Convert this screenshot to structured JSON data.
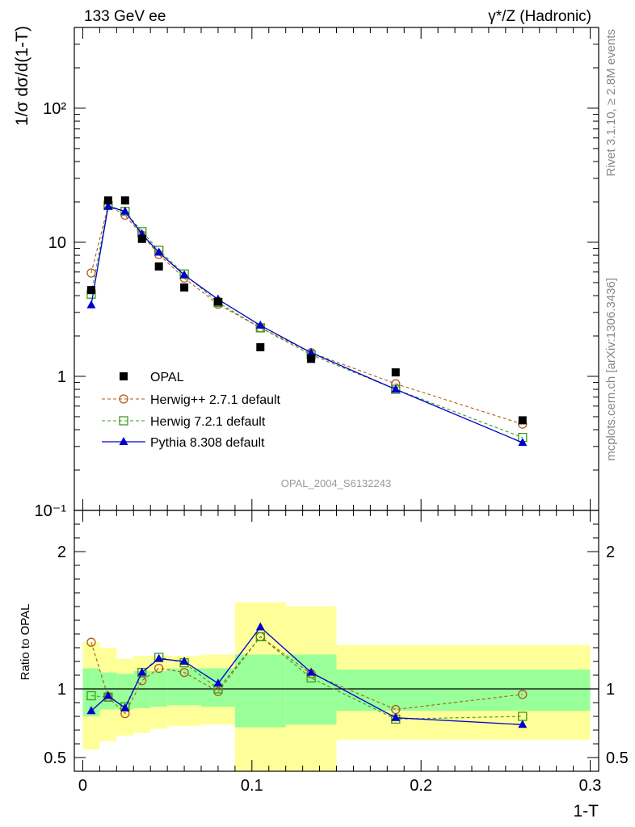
{
  "header": {
    "left": "133 GeV ee",
    "right": "γ*/Z (Hadronic)"
  },
  "side_text": {
    "rivet": "Rivet 3.1.10, ≥ 2.8M events",
    "mcplots": "mcplots.cern.ch [arXiv:1306.3436]"
  },
  "watermark": "OPAL_2004_S6132243",
  "colors": {
    "data": "#000000",
    "herwigpp": "#b05a1b",
    "herwig7": "#3c9a1c",
    "pythia": "#0000cc",
    "band_outer": "#ffff99",
    "band_inner": "#99ff99"
  },
  "chart_data": [
    {
      "type": "scatter",
      "panel": "main",
      "ylabel": "1/σ dσ/d(1-T)",
      "yscale": "log",
      "ylim": [
        0.1,
        400
      ],
      "xlim": [
        -0.005,
        0.305
      ],
      "ytick_labels": [
        "10⁻¹",
        "1",
        "10",
        "10²"
      ],
      "legend_placement": "lower-left",
      "series": [
        {
          "name": "OPAL",
          "marker": "square-filled",
          "x": [
            0.005,
            0.015,
            0.025,
            0.035,
            0.045,
            0.06,
            0.08,
            0.105,
            0.135,
            0.185,
            0.26
          ],
          "y": [
            4.4,
            20.5,
            20.5,
            10.6,
            6.6,
            4.6,
            3.6,
            1.65,
            1.35,
            1.07,
            0.47
          ]
        },
        {
          "name": "Herwig++ 2.7.1 default",
          "marker": "circle-open",
          "line": "dashed",
          "x": [
            0.005,
            0.015,
            0.025,
            0.035,
            0.045,
            0.06,
            0.08,
            0.105,
            0.135,
            0.185,
            0.26
          ],
          "y": [
            5.9,
            18.8,
            15.9,
            11.3,
            8.1,
            5.4,
            3.45,
            2.3,
            1.5,
            0.88,
            0.44
          ]
        },
        {
          "name": "Herwig 7.2.1 default",
          "marker": "square-open",
          "line": "dashed",
          "x": [
            0.005,
            0.015,
            0.025,
            0.035,
            0.045,
            0.06,
            0.08,
            0.105,
            0.135,
            0.185,
            0.26
          ],
          "y": [
            4.1,
            18.8,
            17.0,
            12.0,
            8.7,
            5.8,
            3.55,
            2.3,
            1.45,
            0.8,
            0.35
          ]
        },
        {
          "name": "Pythia 8.308 default",
          "marker": "triangle-filled",
          "line": "solid",
          "x": [
            0.005,
            0.015,
            0.025,
            0.035,
            0.045,
            0.06,
            0.08,
            0.105,
            0.135,
            0.185,
            0.26
          ],
          "y": [
            3.4,
            18.5,
            17.0,
            11.5,
            8.4,
            5.7,
            3.75,
            2.4,
            1.5,
            0.8,
            0.32
          ]
        }
      ]
    },
    {
      "type": "line",
      "panel": "ratio",
      "ylabel": "Ratio to OPAL",
      "xlabel": "1-T",
      "xlim": [
        -0.005,
        0.305
      ],
      "ylim": [
        0.4,
        2.3
      ],
      "xticks": [
        0,
        0.1,
        0.2,
        0.3
      ],
      "xtick_labels": [
        "0",
        "0.1",
        "0.2",
        "0.3"
      ],
      "yticks": [
        0.5,
        1,
        2
      ],
      "ytick_labels": [
        "0.5",
        "1",
        "2"
      ],
      "reference_line": 1,
      "bands": {
        "edges": [
          0.0,
          0.01,
          0.02,
          0.03,
          0.04,
          0.05,
          0.07,
          0.09,
          0.12,
          0.15,
          0.3
        ],
        "outer_low": [
          0.56,
          0.62,
          0.66,
          0.68,
          0.71,
          0.73,
          0.74,
          0.35,
          0.35,
          0.63
        ],
        "outer_high": [
          1.34,
          1.3,
          1.22,
          1.24,
          1.24,
          1.24,
          1.25,
          1.63,
          1.6,
          1.32
        ],
        "inner_low": [
          0.8,
          0.85,
          0.85,
          0.86,
          0.87,
          0.88,
          0.87,
          0.72,
          0.74,
          0.84
        ],
        "inner_high": [
          1.15,
          1.12,
          1.11,
          1.13,
          1.13,
          1.15,
          1.15,
          1.25,
          1.25,
          1.14
        ]
      },
      "series": [
        {
          "name": "Herwig++ 2.7.1 default",
          "marker": "circle-open",
          "line": "dashed",
          "x": [
            0.005,
            0.015,
            0.025,
            0.035,
            0.045,
            0.06,
            0.08,
            0.105,
            0.135,
            0.185,
            0.26
          ],
          "y": [
            1.34,
            0.94,
            0.82,
            1.06,
            1.15,
            1.12,
            0.98,
            1.38,
            1.11,
            0.85,
            0.96
          ]
        },
        {
          "name": "Herwig 7.2.1 default",
          "marker": "square-open",
          "line": "dashed",
          "x": [
            0.005,
            0.015,
            0.025,
            0.035,
            0.045,
            0.06,
            0.08,
            0.105,
            0.135,
            0.185,
            0.26
          ],
          "y": [
            0.95,
            0.94,
            0.87,
            1.12,
            1.23,
            1.19,
            1.0,
            1.38,
            1.08,
            0.78,
            0.8
          ]
        },
        {
          "name": "Pythia 8.308 default",
          "marker": "triangle-filled",
          "line": "solid",
          "x": [
            0.005,
            0.015,
            0.025,
            0.035,
            0.045,
            0.06,
            0.08,
            0.105,
            0.135,
            0.185,
            0.26
          ],
          "y": [
            0.84,
            0.95,
            0.86,
            1.12,
            1.22,
            1.2,
            1.04,
            1.45,
            1.12,
            0.79,
            0.74
          ]
        }
      ]
    }
  ]
}
